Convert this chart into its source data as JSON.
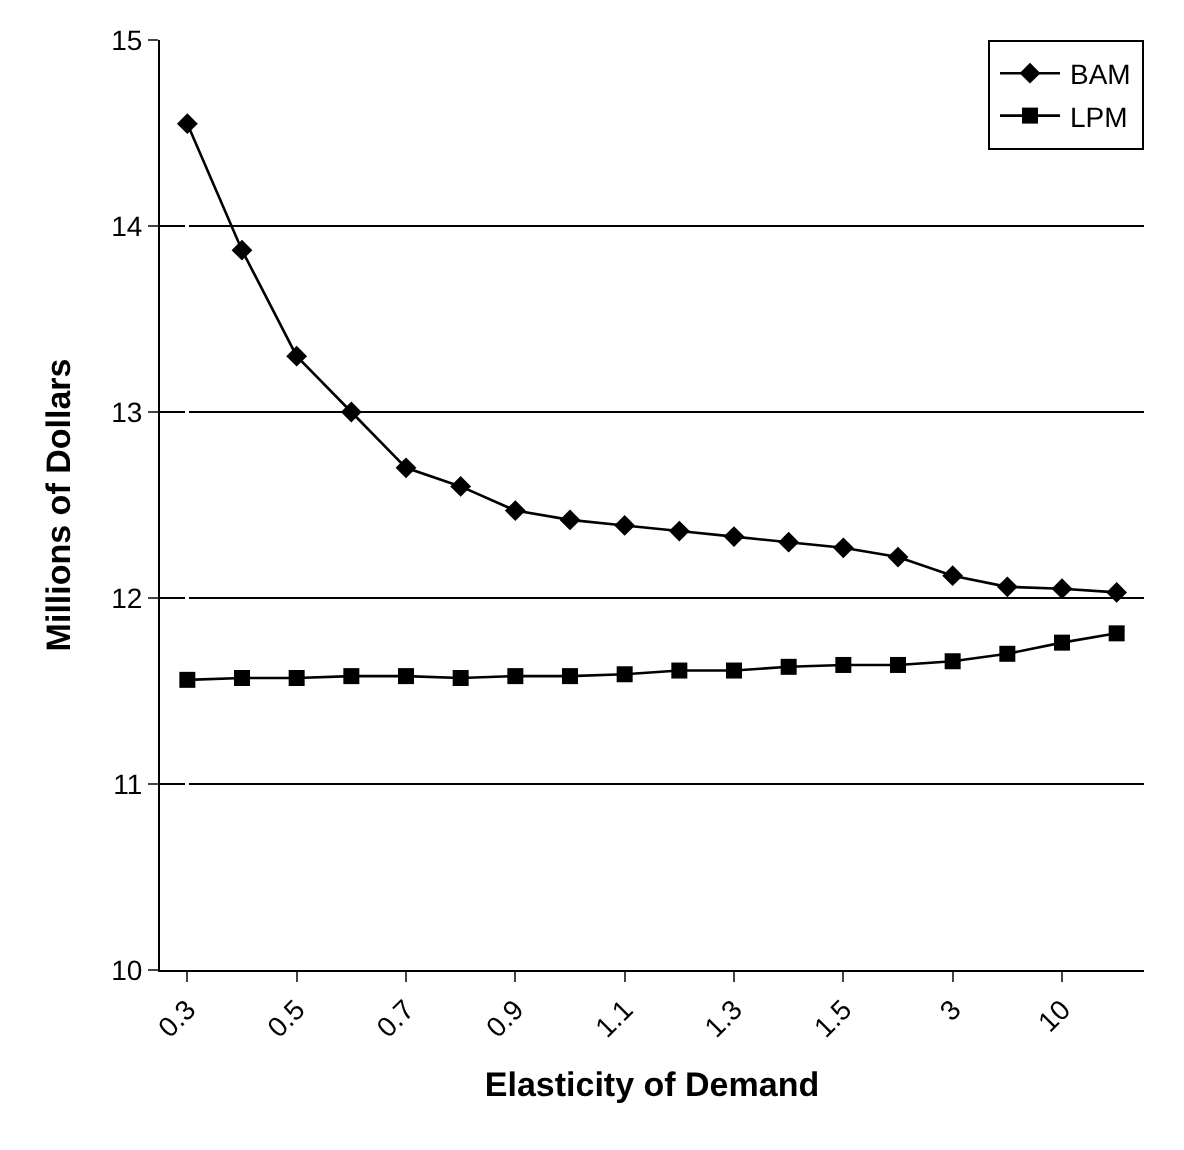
{
  "chart_data": {
    "type": "line",
    "xlabel": "Elasticity of Demand",
    "ylabel": "Millions of Dollars",
    "categories": [
      "0.3",
      null,
      "0.5",
      null,
      "0.7",
      null,
      "0.9",
      null,
      "1.1",
      null,
      "1.3",
      null,
      "1.5",
      null,
      "3",
      null,
      "10",
      null
    ],
    "series": [
      {
        "name": "BAM",
        "color": "#000000",
        "marker": "diamond",
        "values": [
          14.55,
          13.87,
          13.3,
          13.0,
          12.7,
          12.6,
          12.47,
          12.42,
          12.39,
          12.36,
          12.33,
          12.3,
          12.27,
          12.22,
          12.12,
          12.06,
          12.05,
          12.03
        ]
      },
      {
        "name": "LPM",
        "color": "#000000",
        "marker": "square",
        "values": [
          11.56,
          11.57,
          11.57,
          11.58,
          11.58,
          11.57,
          11.58,
          11.58,
          11.59,
          11.61,
          11.61,
          11.63,
          11.64,
          11.64,
          11.66,
          11.7,
          11.76,
          11.81
        ]
      }
    ],
    "ylim": [
      10,
      15
    ],
    "yticks": [
      10,
      11,
      12,
      13,
      14,
      15
    ],
    "grid": "y",
    "legend": "top right",
    "line_style": "solid"
  }
}
